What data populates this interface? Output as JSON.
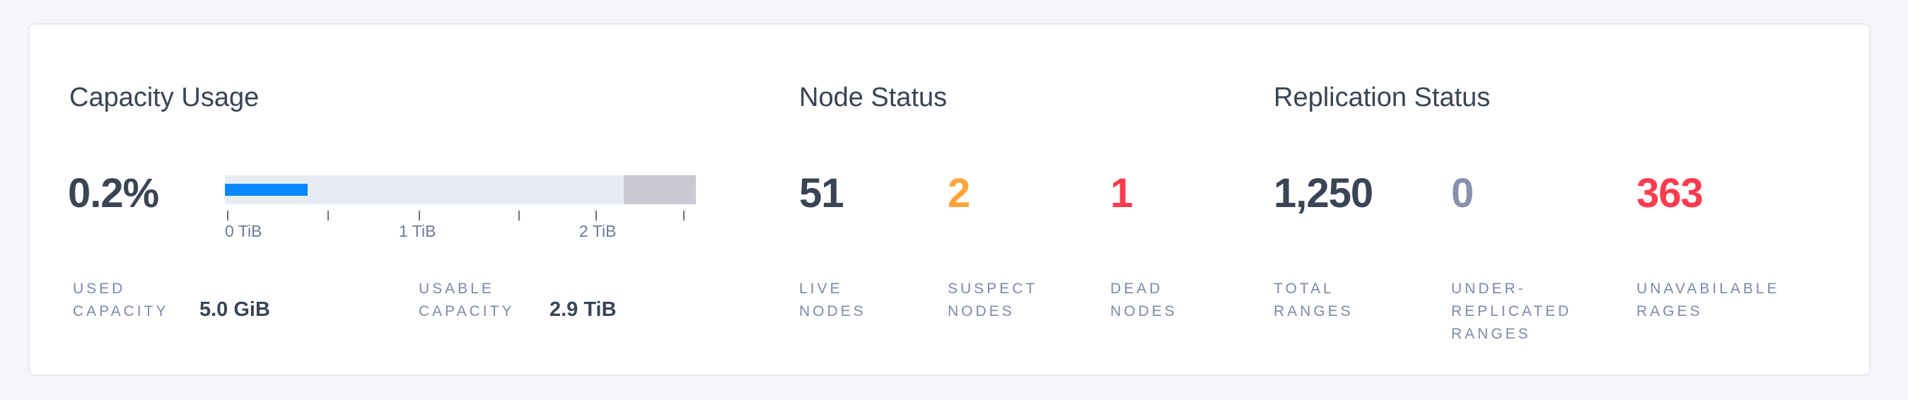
{
  "capacity": {
    "title": "Capacity Usage",
    "percent": "0.2%",
    "bar": {
      "used_fraction": 0.002,
      "fill_color": "#0788ff",
      "track_color": "#e7ebf2",
      "reserved_color": "#c8c9d2"
    },
    "ticks": [
      "0 TiB",
      "1 TiB",
      "2 TiB"
    ],
    "used_label": [
      "USED",
      "CAPACITY"
    ],
    "used_value": "5.0 GiB",
    "usable_label": [
      "USABLE",
      "CAPACITY"
    ],
    "usable_value": "2.9 TiB"
  },
  "nodes": {
    "title": "Node Status",
    "stats": [
      {
        "value": "51",
        "label": [
          "LIVE",
          "NODES"
        ],
        "color": "#394455"
      },
      {
        "value": "2",
        "label": [
          "SUSPECT",
          "NODES"
        ],
        "color": "#ffa43a"
      },
      {
        "value": "1",
        "label": [
          "DEAD",
          "NODES"
        ],
        "color": "#ff3b4e"
      }
    ]
  },
  "replication": {
    "title": "Replication Status",
    "stats": [
      {
        "value": "1,250",
        "label": [
          "TOTAL",
          "RANGES"
        ],
        "color": "#394455"
      },
      {
        "value": "0",
        "label": [
          "UNDER-",
          "REPLICATED",
          "RANGES"
        ],
        "color": "#8790ad"
      },
      {
        "value": "363",
        "label": [
          "UNAVABILABLE",
          "RAGES"
        ],
        "color": "#ff3b4e"
      }
    ]
  }
}
